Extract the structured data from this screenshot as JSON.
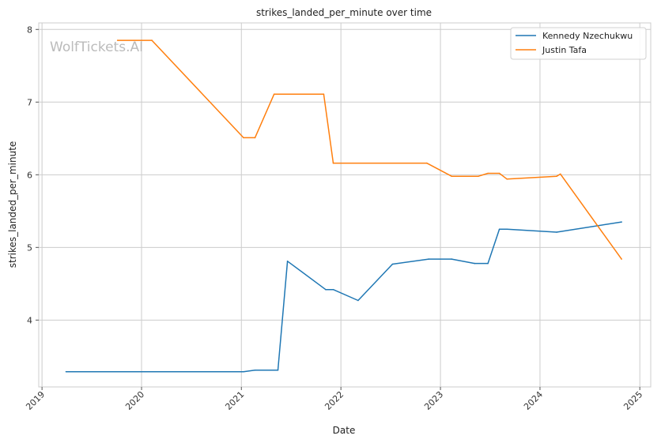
{
  "chart_data": {
    "type": "line",
    "title": "strikes_landed_per_minute over time",
    "xlabel": "Date",
    "ylabel": "strikes_landed_per_minute",
    "watermark": "WolfTickets.AI",
    "x_ticks": [
      "2019",
      "2020",
      "2021",
      "2022",
      "2023",
      "2024",
      "2025"
    ],
    "y_ticks": [
      4,
      5,
      6,
      7,
      8
    ],
    "xlim": [
      "2018-12-20",
      "2025-02-10"
    ],
    "ylim": [
      3.08,
      8.09
    ],
    "grid": true,
    "legend_position": "top-right",
    "series": [
      {
        "name": "Kennedy Nzechukwu",
        "color": "#1f77b4",
        "points": [
          [
            "2019-03-30",
            3.29
          ],
          [
            "2021-01-09",
            3.29
          ],
          [
            "2021-02-20",
            3.31
          ],
          [
            "2021-05-15",
            3.31
          ],
          [
            "2021-06-19",
            4.81
          ],
          [
            "2021-11-06",
            4.42
          ],
          [
            "2021-12-04",
            4.42
          ],
          [
            "2022-03-05",
            4.27
          ],
          [
            "2022-07-09",
            4.77
          ],
          [
            "2022-11-19",
            4.84
          ],
          [
            "2023-02-11",
            4.84
          ],
          [
            "2023-05-06",
            4.78
          ],
          [
            "2023-06-24",
            4.78
          ],
          [
            "2023-08-05",
            5.25
          ],
          [
            "2023-09-02",
            5.25
          ],
          [
            "2024-03-02",
            5.21
          ],
          [
            "2024-10-26",
            5.35
          ]
        ]
      },
      {
        "name": "Justin Tafa",
        "color": "#ff7f0e",
        "points": [
          [
            "2019-10-05",
            7.85
          ],
          [
            "2020-02-08",
            7.85
          ],
          [
            "2021-01-09",
            6.51
          ],
          [
            "2021-02-20",
            6.51
          ],
          [
            "2021-05-01",
            7.11
          ],
          [
            "2021-10-30",
            7.11
          ],
          [
            "2021-12-04",
            6.16
          ],
          [
            "2022-11-12",
            6.16
          ],
          [
            "2023-02-11",
            5.98
          ],
          [
            "2023-05-20",
            5.98
          ],
          [
            "2023-06-24",
            6.02
          ],
          [
            "2023-08-05",
            6.02
          ],
          [
            "2023-09-02",
            5.94
          ],
          [
            "2024-03-02",
            5.98
          ],
          [
            "2024-03-16",
            6.01
          ],
          [
            "2024-10-26",
            4.84
          ]
        ]
      }
    ]
  }
}
